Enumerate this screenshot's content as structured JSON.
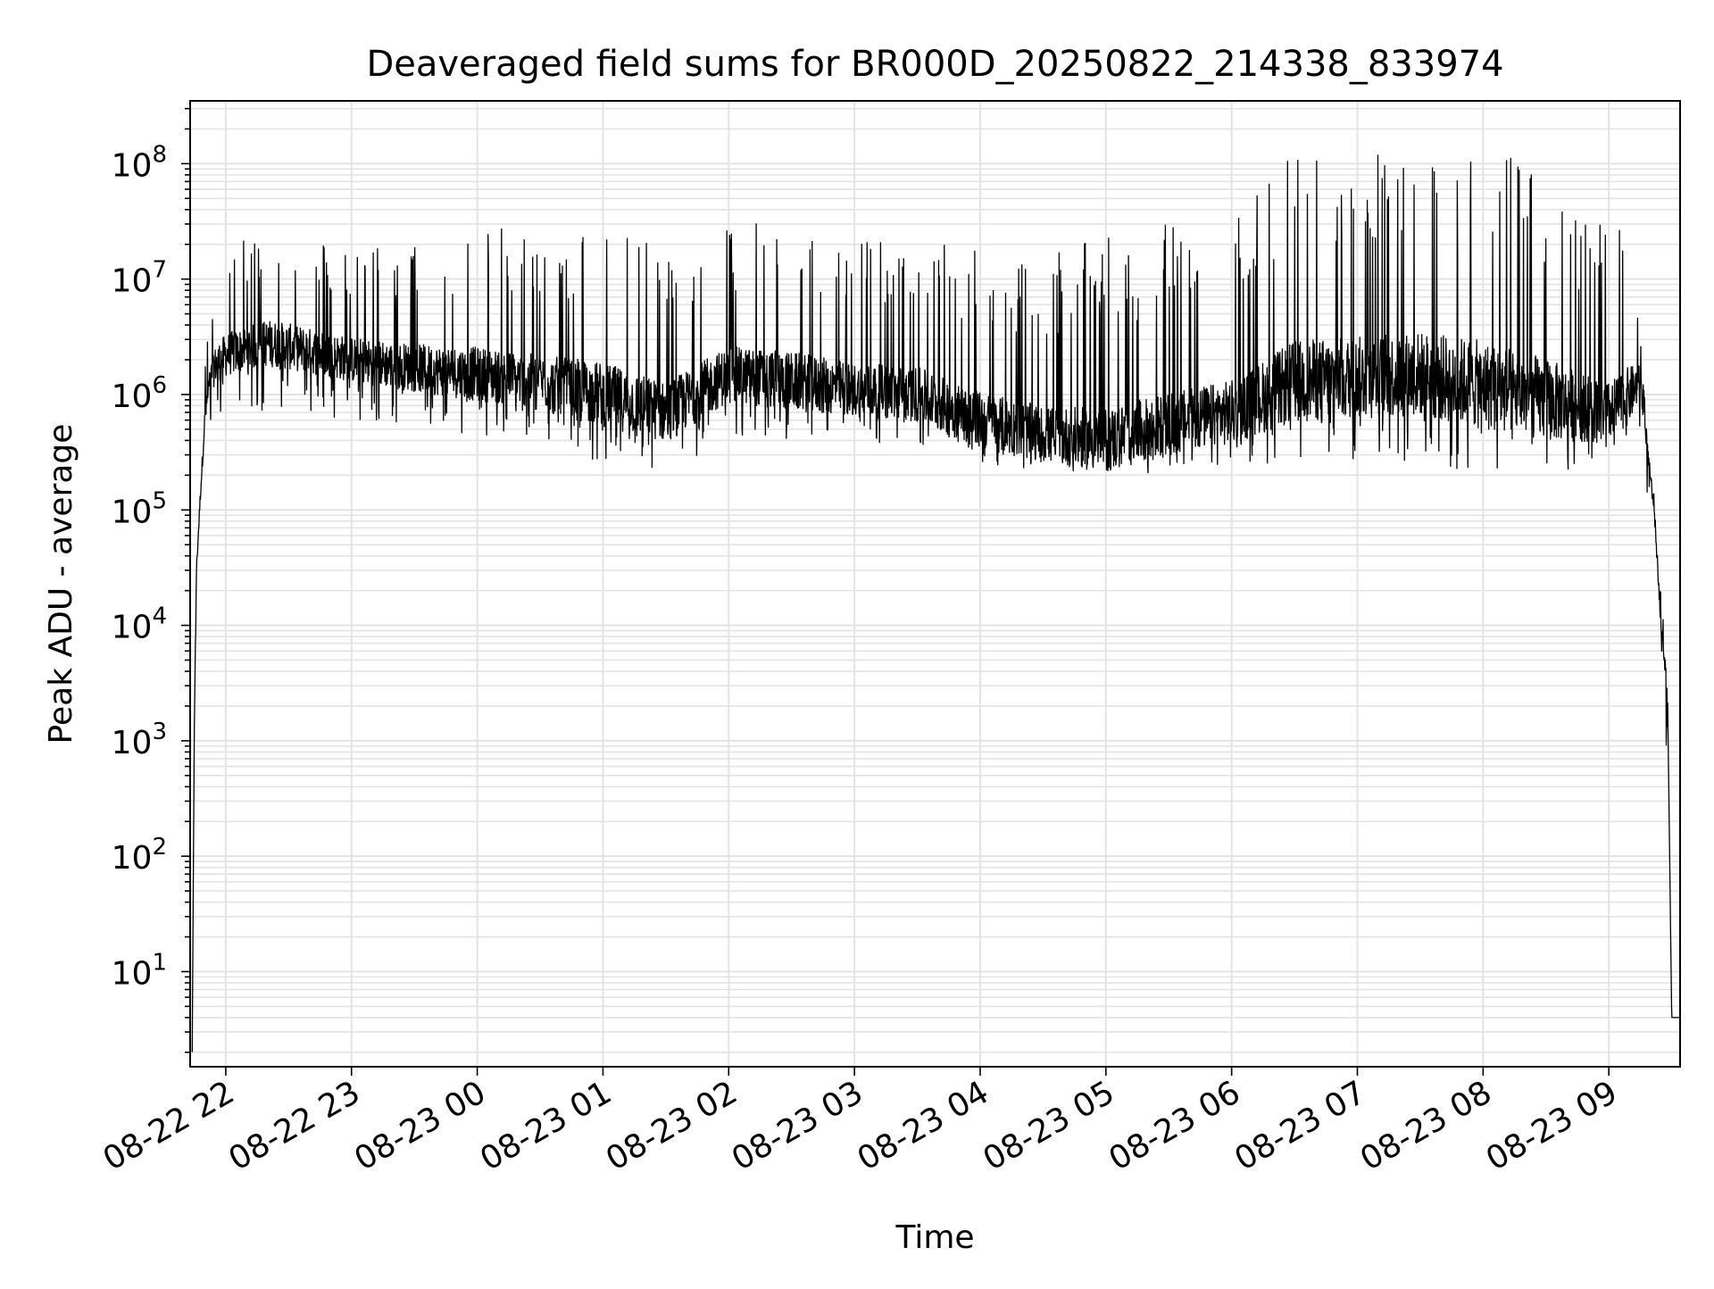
{
  "chart_data": {
    "type": "line",
    "title": "Deaveraged field sums for BR000D_20250822_214338_833974",
    "xlabel": "Time",
    "ylabel": "Peak ADU - average",
    "yscale": "log",
    "ylim": [
      1.5,
      350000000
    ],
    "xlim": [
      "2025-08-22 21:43",
      "2025-08-23 09:34"
    ],
    "grid": true,
    "line_color": "#000000",
    "x_tick_labels": [
      "08-22 22",
      "08-22 23",
      "08-23 00",
      "08-23 01",
      "08-23 02",
      "08-23 03",
      "08-23 04",
      "08-23 05",
      "08-23 06",
      "08-23 07",
      "08-23 08",
      "08-23 09"
    ],
    "x_ticks": [
      "2025-08-22 22:00",
      "2025-08-22 23:00",
      "2025-08-23 00:00",
      "2025-08-23 01:00",
      "2025-08-23 02:00",
      "2025-08-23 03:00",
      "2025-08-23 04:00",
      "2025-08-23 05:00",
      "2025-08-23 06:00",
      "2025-08-23 07:00",
      "2025-08-23 08:00",
      "2025-08-23 09:00"
    ],
    "y_tick_labels": [
      {
        "base": "10",
        "exp": "1",
        "value": 10
      },
      {
        "base": "10",
        "exp": "2",
        "value": 100
      },
      {
        "base": "10",
        "exp": "3",
        "value": 1000
      },
      {
        "base": "10",
        "exp": "4",
        "value": 10000
      },
      {
        "base": "10",
        "exp": "5",
        "value": 100000
      },
      {
        "base": "10",
        "exp": "6",
        "value": 1000000
      },
      {
        "base": "10",
        "exp": "7",
        "value": 10000000
      },
      {
        "base": "10",
        "exp": "8",
        "value": 100000000
      }
    ],
    "series": [
      {
        "x": [
          "2025-08-22 21:44",
          "2025-08-22 21:45",
          "2025-08-22 21:46",
          "2025-08-22 21:48",
          "2025-08-22 21:50",
          "2025-08-22 21:52",
          "2025-08-22 21:55",
          "2025-08-22 22:00",
          "2025-08-22 22:10",
          "2025-08-22 22:20",
          "2025-08-22 22:30",
          "2025-08-22 22:40",
          "2025-08-22 23:00",
          "2025-08-22 23:30",
          "2025-08-23 00:00",
          "2025-08-23 00:30",
          "2025-08-23 01:00",
          "2025-08-23 01:30",
          "2025-08-23 02:00",
          "2025-08-23 02:30",
          "2025-08-23 03:00",
          "2025-08-23 03:30",
          "2025-08-23 04:00",
          "2025-08-23 04:30",
          "2025-08-23 05:00",
          "2025-08-23 05:30",
          "2025-08-23 06:00",
          "2025-08-23 06:30",
          "2025-08-23 07:00",
          "2025-08-23 07:30",
          "2025-08-23 08:00",
          "2025-08-23 08:30",
          "2025-08-23 09:00",
          "2025-08-23 09:10",
          "2025-08-23 09:15",
          "2025-08-23 09:18",
          "2025-08-23 09:22",
          "2025-08-23 09:25",
          "2025-08-23 09:28",
          "2025-08-23 09:30",
          "2025-08-23 09:32",
          "2025-08-23 09:34"
        ],
        "y": [
          2,
          1300,
          30000,
          150000,
          600000,
          1200000,
          1800000,
          2200000,
          2500000,
          2800000,
          2600000,
          2400000,
          2000000,
          1700000,
          1500000,
          1300000,
          1000000,
          700000,
          1500000,
          1300000,
          1100000,
          1000000,
          600000,
          450000,
          400000,
          550000,
          700000,
          1300000,
          1400000,
          1500000,
          1200000,
          900000,
          700000,
          1000000,
          1300000,
          400000,
          80000,
          10000,
          3000,
          4,
          4,
          4
        ],
        "envelope_low": [
          2,
          1000,
          20000,
          100000,
          400000,
          500000,
          600000,
          700000,
          700000,
          700000,
          700000,
          650000,
          600000,
          500000,
          450000,
          400000,
          250000,
          200000,
          400000,
          400000,
          400000,
          350000,
          250000,
          200000,
          170000,
          230000,
          250000,
          250000,
          250000,
          200000,
          150000,
          180000,
          300000,
          300000,
          400000,
          150000,
          50000,
          5000,
          500,
          4,
          4,
          4
        ],
        "envelope_high": [
          2,
          1500,
          50000,
          300000,
          2000000,
          5000000,
          10000000,
          20000000,
          22000000,
          27000000,
          25000000,
          22000000,
          20000000,
          20000000,
          30000000,
          25000000,
          35000000,
          20000000,
          30000000,
          38000000,
          25000000,
          25000000,
          20000000,
          15000000,
          25000000,
          30000000,
          35000000,
          130000000,
          140000000,
          140000000,
          140000000,
          100000000,
          30000000,
          25000000,
          5000000,
          500000,
          150000,
          20000,
          3000,
          4,
          4,
          4
        ]
      }
    ]
  }
}
